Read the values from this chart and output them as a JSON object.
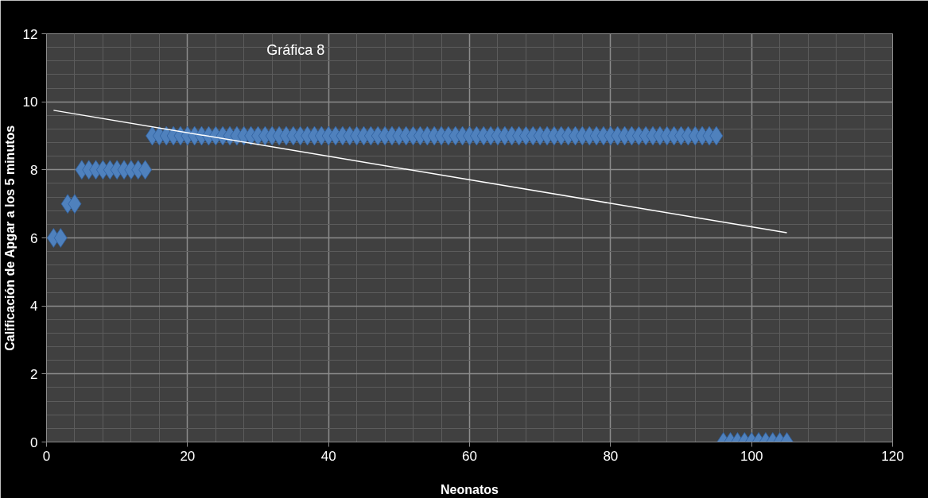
{
  "chart_data": {
    "type": "scatter",
    "title": "Gráfica  8",
    "xlabel": "Neonatos",
    "ylabel": "Calificación de Apgar a los 5 minutos",
    "xlim": [
      0,
      120
    ],
    "xticks": [
      0,
      20,
      40,
      60,
      80,
      100,
      120
    ],
    "ylim": [
      0,
      12
    ],
    "yticks": [
      0,
      2,
      4,
      6,
      8,
      10,
      12
    ],
    "grid": true,
    "marker": "diamond",
    "series": [
      {
        "color": "#4f81bd",
        "x": [
          1,
          2,
          3,
          4,
          5,
          6,
          7,
          8,
          9,
          10,
          11,
          12,
          13,
          14,
          15,
          16,
          17,
          18,
          19,
          20,
          21,
          22,
          23,
          24,
          25,
          26,
          27,
          28,
          29,
          30,
          31,
          32,
          33,
          34,
          35,
          36,
          37,
          38,
          39,
          40,
          41,
          42,
          43,
          44,
          45,
          46,
          47,
          48,
          49,
          50,
          51,
          52,
          53,
          54,
          55,
          56,
          57,
          58,
          59,
          60,
          61,
          62,
          63,
          64,
          65,
          66,
          67,
          68,
          69,
          70,
          71,
          72,
          73,
          74,
          75,
          76,
          77,
          78,
          79,
          80,
          81,
          82,
          83,
          84,
          85,
          86,
          87,
          88,
          89,
          90,
          91,
          92,
          93,
          94,
          95,
          96,
          97,
          98,
          99,
          100,
          101,
          102,
          103,
          104,
          105
        ],
        "values": [
          6,
          6,
          7,
          7,
          8,
          8,
          8,
          8,
          8,
          8,
          8,
          8,
          8,
          8,
          9,
          9,
          9,
          9,
          9,
          9,
          9,
          9,
          9,
          9,
          9,
          9,
          9,
          9,
          9,
          9,
          9,
          9,
          9,
          9,
          9,
          9,
          9,
          9,
          9,
          9,
          9,
          9,
          9,
          9,
          9,
          9,
          9,
          9,
          9,
          9,
          9,
          9,
          9,
          9,
          9,
          9,
          9,
          9,
          9,
          9,
          9,
          9,
          9,
          9,
          9,
          9,
          9,
          9,
          9,
          9,
          9,
          9,
          9,
          9,
          9,
          9,
          9,
          9,
          9,
          9,
          9,
          9,
          9,
          9,
          9,
          9,
          9,
          9,
          9,
          9,
          9,
          9,
          9,
          9,
          9,
          0,
          0,
          0,
          0,
          0,
          0,
          0,
          0,
          0,
          0
        ]
      },
      {
        "type": "line",
        "color": "#ffffff",
        "x": [
          1,
          105
        ],
        "values": [
          9.75,
          6.15
        ],
        "marker": "none"
      }
    ]
  }
}
